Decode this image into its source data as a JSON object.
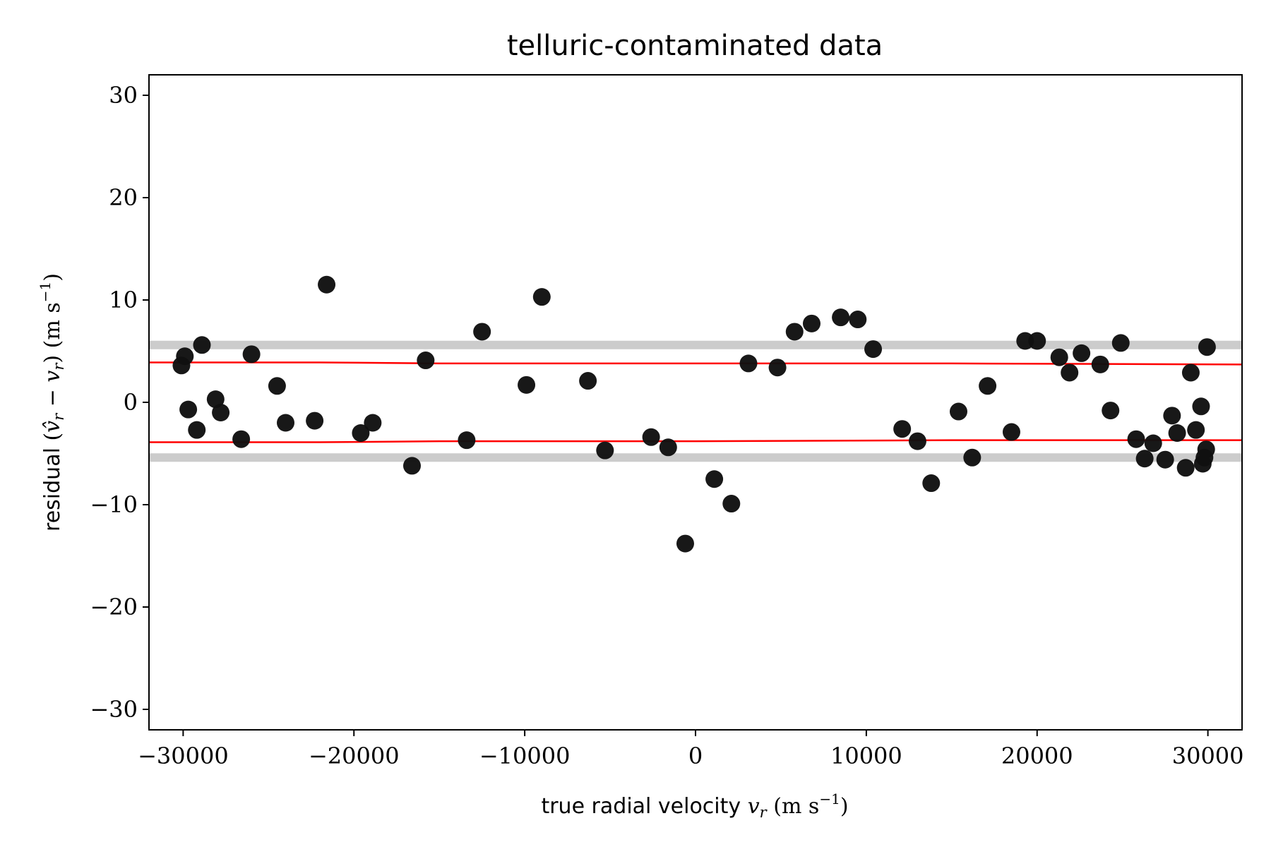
{
  "chart_data": {
    "type": "scatter",
    "title": "telluric-contaminated data",
    "xlabel": {
      "text": "true radial velocity ",
      "symbol": "v",
      "subscript": "r",
      "units_open": " (m s",
      "units_exp": "−1",
      "units_close": ")"
    },
    "ylabel": {
      "text": "residual ",
      "math_open": "(",
      "symbol_hat": "v̂",
      "subscript1": "r",
      "minus": " − ",
      "symbol": "v",
      "subscript2": "r",
      "math_close": ")",
      "units_open": " (m s",
      "units_exp": "−1",
      "units_close": ")"
    },
    "xlim": [
      -32000,
      32000
    ],
    "ylim": [
      -32,
      32
    ],
    "xticks": [
      -30000,
      -20000,
      -10000,
      0,
      10000,
      20000,
      30000
    ],
    "xtick_labels": [
      "−30000",
      "−20000",
      "−10000",
      "0",
      "10000",
      "20000",
      "30000"
    ],
    "yticks": [
      -30,
      -20,
      -10,
      0,
      10,
      20,
      30
    ],
    "ytick_labels": [
      "−30",
      "−20",
      "−10",
      "0",
      "10",
      "20",
      "30"
    ],
    "grid": false,
    "colors": {
      "points": "#111111",
      "red_lines": "#ff0000",
      "gray_bands": "#cccccc"
    },
    "bands": [
      5.6,
      -5.4
    ],
    "red_lines": [
      {
        "x": [
          -32000,
          -22000,
          -15000,
          0,
          15000,
          32000
        ],
        "y": [
          3.9,
          3.9,
          3.8,
          3.8,
          3.8,
          3.7
        ]
      },
      {
        "x": [
          -32000,
          -22000,
          -15000,
          0,
          15000,
          32000
        ],
        "y": [
          -3.9,
          -3.9,
          -3.8,
          -3.8,
          -3.7,
          -3.7
        ]
      }
    ],
    "points": {
      "x": [
        -30100,
        -29900,
        -29700,
        -29200,
        -28900,
        -28100,
        -27800,
        -26600,
        -26000,
        -24500,
        -24000,
        -22300,
        -21600,
        -19600,
        -18900,
        -16600,
        -15800,
        -13400,
        -12500,
        -9900,
        -9000,
        -6300,
        -5300,
        -2600,
        -1600,
        -600,
        1100,
        2100,
        3100,
        4800,
        5800,
        6800,
        8500,
        9500,
        10400,
        12100,
        13000,
        13800,
        15400,
        16200,
        17100,
        18500,
        19300,
        20000,
        21300,
        21900,
        22600,
        23700,
        24300,
        24900,
        25800,
        26300,
        26800,
        27500,
        27900,
        28200,
        28700,
        29000,
        29300,
        29600,
        29700,
        29800,
        29900,
        29950
      ],
      "y": [
        3.6,
        4.5,
        -0.7,
        -2.7,
        5.6,
        0.3,
        -1.0,
        -3.6,
        4.7,
        1.6,
        -2.0,
        -1.8,
        11.5,
        -3.0,
        -2.0,
        -6.2,
        4.1,
        -3.7,
        6.9,
        1.7,
        10.3,
        2.1,
        -4.7,
        -3.4,
        -4.4,
        -13.8,
        -7.5,
        -9.9,
        3.8,
        3.4,
        6.9,
        7.7,
        8.3,
        8.1,
        5.2,
        -2.6,
        -3.8,
        -7.9,
        -0.9,
        -5.4,
        1.6,
        -2.9,
        6.0,
        6.0,
        4.4,
        2.9,
        4.8,
        3.7,
        -0.8,
        5.8,
        -3.6,
        -5.5,
        -4.0,
        -5.6,
        -1.3,
        -3.0,
        -6.4,
        2.9,
        -2.7,
        -0.4,
        -6.0,
        -5.4,
        -4.6,
        5.4
      ]
    }
  }
}
